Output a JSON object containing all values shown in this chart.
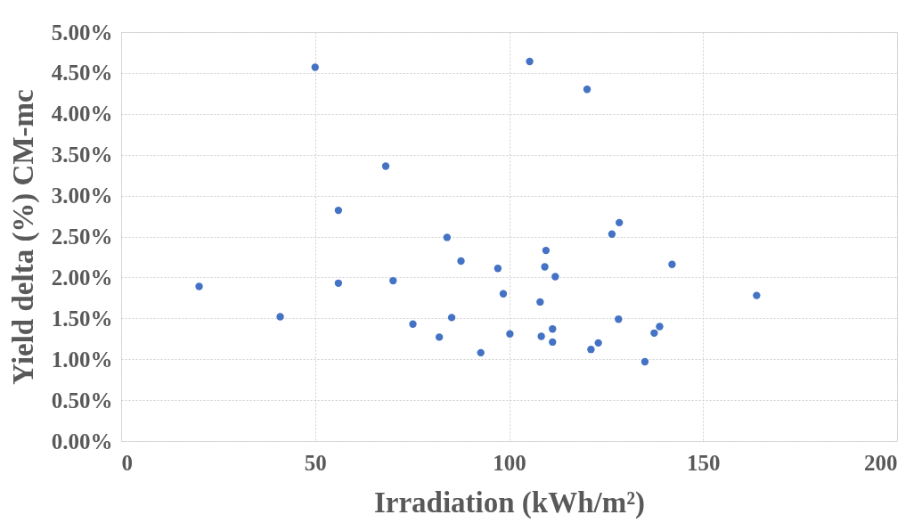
{
  "chart_data": {
    "type": "scatter",
    "xlabel": "Irradiation (kWh/m²)",
    "ylabel": "Yield delta (%) CM-mc",
    "x": [
      50,
      105.3,
      120.1,
      68.2,
      56,
      128.4,
      126.5,
      84,
      109.5,
      87.6,
      142,
      97.1,
      109.2,
      111.9,
      70.1,
      56,
      20.1,
      98.5,
      163.8,
      108,
      41,
      85.2,
      128.2,
      75.2,
      138.8,
      137.4,
      100.2,
      111.2,
      82,
      108.3,
      111.2,
      123,
      121.1,
      92.7,
      135
    ],
    "series": [
      {
        "color": "#4472c4",
        "values": [
          4.57,
          4.64,
          4.3,
          3.36,
          2.82,
          2.67,
          2.53,
          2.49,
          2.33,
          2.2,
          2.16,
          2.11,
          2.13,
          2.01,
          1.96,
          1.93,
          1.89,
          1.8,
          1.78,
          1.7,
          1.52,
          1.51,
          1.49,
          1.43,
          1.4,
          1.32,
          1.31,
          1.37,
          1.27,
          1.28,
          1.21,
          1.2,
          1.12,
          1.08,
          0.97
        ]
      }
    ],
    "xlim": [
      0,
      200
    ],
    "xticks": [
      0,
      50,
      100,
      150,
      200
    ],
    "ylim": [
      0,
      5
    ],
    "yticks": [
      {
        "value": 0,
        "label": "0.00%"
      },
      {
        "value": 0.5,
        "label": "0.50%"
      },
      {
        "value": 1,
        "label": "1.00%"
      },
      {
        "value": 1.5,
        "label": "1.50%"
      },
      {
        "value": 2,
        "label": "2.00%"
      },
      {
        "value": 2.5,
        "label": "2.50%"
      },
      {
        "value": 3,
        "label": "3.00%"
      },
      {
        "value": 3.5,
        "label": "3.50%"
      },
      {
        "value": 4,
        "label": "4.00%"
      },
      {
        "value": 4.5,
        "label": "4.50%"
      },
      {
        "value": 5,
        "label": "5.00%"
      }
    ],
    "grid": true,
    "marker": "circle"
  }
}
